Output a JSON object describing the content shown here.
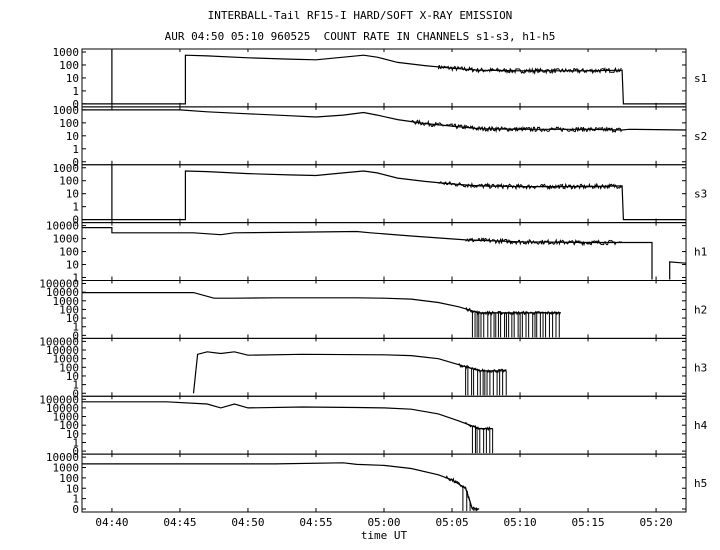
{
  "title_line1": "INTERBALL-Tail RF15-I HARD/SOFT X-RAY EMISSION",
  "title_line2": "AUR 04:50 05:10 960525  COUNT RATE IN CHANNELS s1-s3, h1-h5",
  "chart_data": {
    "type": "line",
    "xlabel": "time UT",
    "x_ticks": [
      "04:40",
      "04:45",
      "04:50",
      "04:55",
      "05:00",
      "05:05",
      "05:10",
      "05:15",
      "05:20"
    ],
    "x_range_minutes_after_0440": [
      -2.2,
      42.2
    ],
    "panels": [
      {
        "name": "s1",
        "y_ticks": [
          "1000",
          "100",
          "10",
          "1",
          "0"
        ],
        "y_max_decade": 3,
        "segments": [
          [
            [
              -2.2,
              -1
            ],
            [
              0,
              -1
            ],
            [
              0,
              4
            ],
            [
              0,
              -1
            ],
            [
              5.4,
              -1
            ],
            [
              5.4,
              2.75
            ],
            [
              7,
              2.7
            ],
            [
              10,
              2.55
            ],
            [
              13,
              2.45
            ],
            [
              15,
              2.4
            ],
            [
              17,
              2.6
            ],
            [
              18.5,
              2.75
            ],
            [
              19.5,
              2.6
            ],
            [
              21,
              2.2
            ],
            [
              23,
              1.95
            ],
            [
              25,
              1.75
            ],
            [
              27,
              1.6
            ],
            [
              30,
              1.55
            ],
            [
              35,
              1.55
            ],
            [
              37.5,
              1.6
            ],
            [
              37.6,
              -1
            ],
            [
              42.2,
              -1
            ]
          ]
        ],
        "noisy": [
          [
            24,
            37.5
          ]
        ]
      },
      {
        "name": "s2",
        "y_ticks": [
          "1000",
          "100",
          "10",
          "1",
          "0"
        ],
        "y_max_decade": 3,
        "segments": [
          [
            [
              -2.2,
              3.0
            ],
            [
              5,
              3.0
            ],
            [
              7,
              2.85
            ],
            [
              10,
              2.7
            ],
            [
              13,
              2.55
            ],
            [
              15,
              2.45
            ],
            [
              17,
              2.6
            ],
            [
              18.5,
              2.8
            ],
            [
              19.5,
              2.6
            ],
            [
              21,
              2.25
            ],
            [
              23,
              1.95
            ],
            [
              25,
              1.75
            ],
            [
              27,
              1.55
            ],
            [
              30,
              1.5
            ],
            [
              35,
              1.5
            ],
            [
              37.5,
              1.45
            ],
            [
              38,
              1.5
            ],
            [
              42.2,
              1.45
            ]
          ]
        ],
        "noisy": [
          [
            22,
            37.5
          ]
        ]
      },
      {
        "name": "s3",
        "y_ticks": [
          "1000",
          "100",
          "10",
          "1",
          "0"
        ],
        "y_max_decade": 3,
        "segments": [
          [
            [
              -2.2,
              -1
            ],
            [
              0,
              -1
            ],
            [
              0,
              4
            ],
            [
              0,
              -1
            ],
            [
              5.4,
              -1
            ],
            [
              5.4,
              2.75
            ],
            [
              7,
              2.7
            ],
            [
              10,
              2.55
            ],
            [
              13,
              2.45
            ],
            [
              15,
              2.4
            ],
            [
              17,
              2.6
            ],
            [
              18.5,
              2.75
            ],
            [
              19.5,
              2.6
            ],
            [
              21,
              2.2
            ],
            [
              23,
              1.95
            ],
            [
              25,
              1.75
            ],
            [
              27,
              1.6
            ],
            [
              30,
              1.55
            ],
            [
              35,
              1.55
            ],
            [
              37.5,
              1.6
            ],
            [
              37.6,
              -1
            ],
            [
              42.2,
              -1
            ]
          ]
        ],
        "noisy": [
          [
            24,
            37.5
          ]
        ]
      },
      {
        "name": "h1",
        "y_ticks": [
          "10000",
          "1000",
          "100",
          "10",
          "1"
        ],
        "y_max_decade": 4,
        "segments": [
          [
            [
              -2.2,
              3.85
            ],
            [
              0,
              3.85
            ],
            [
              0,
              3.45
            ],
            [
              6,
              3.45
            ],
            [
              8,
              3.3
            ],
            [
              9,
              3.45
            ],
            [
              14,
              3.5
            ],
            [
              18,
              3.55
            ],
            [
              19,
              3.45
            ],
            [
              22,
              3.2
            ],
            [
              26,
              2.9
            ],
            [
              30,
              2.75
            ],
            [
              35,
              2.7
            ],
            [
              39.7,
              2.7
            ],
            [
              39.7,
              -0.2
            ]
          ],
          [
            [
              41,
              -0.2
            ],
            [
              41,
              1.2
            ],
            [
              42.2,
              1.1
            ]
          ]
        ],
        "noisy": [
          [
            26,
            37.5
          ]
        ]
      },
      {
        "name": "h2",
        "y_ticks": [
          "100000",
          "10000",
          "1000",
          "100",
          "10",
          "1",
          "0"
        ],
        "y_max_decade": 5,
        "segments": [
          [
            [
              -2.2,
              3.95
            ],
            [
              6,
              3.95
            ],
            [
              7.5,
              3.3
            ],
            [
              9,
              3.3
            ],
            [
              12,
              3.35
            ],
            [
              18,
              3.35
            ],
            [
              20,
              3.3
            ],
            [
              22,
              3.2
            ],
            [
              24,
              2.8
            ],
            [
              25.5,
              2.3
            ],
            [
              27,
              1.6
            ],
            [
              30,
              1.6
            ],
            [
              33,
              1.6
            ]
          ]
        ],
        "noisy": [
          [
            26,
            33
          ]
        ],
        "dropouts": [
          [
            26.5,
            33
          ]
        ]
      },
      {
        "name": "h3",
        "y_ticks": [
          "100000",
          "10000",
          "1000",
          "100",
          "10",
          "1",
          "0"
        ],
        "y_max_decade": 5,
        "segments": [
          [
            [
              6,
              -1
            ],
            [
              6.3,
              3.5
            ],
            [
              7,
              3.8
            ],
            [
              8,
              3.6
            ],
            [
              9,
              3.8
            ],
            [
              10,
              3.4
            ],
            [
              14,
              3.5
            ],
            [
              20,
              3.45
            ],
            [
              22,
              3.35
            ],
            [
              24,
              3.0
            ],
            [
              25.5,
              2.3
            ],
            [
              27,
              1.6
            ],
            [
              29,
              1.6
            ]
          ]
        ],
        "noisy": [
          [
            25.5,
            29
          ]
        ],
        "dropouts": [
          [
            26,
            29
          ]
        ]
      },
      {
        "name": "h4",
        "y_ticks": [
          "100000",
          "10000",
          "1000",
          "100",
          "10",
          "1",
          "0"
        ],
        "y_max_decade": 5,
        "segments": [
          [
            [
              -2.2,
              4.7
            ],
            [
              4,
              4.7
            ],
            [
              7,
              4.45
            ],
            [
              8,
              4.0
            ],
            [
              9,
              4.45
            ],
            [
              10,
              4.0
            ],
            [
              14,
              4.1
            ],
            [
              18,
              4.05
            ],
            [
              20,
              4.0
            ],
            [
              22,
              3.85
            ],
            [
              24,
              3.3
            ],
            [
              25.5,
              2.5
            ],
            [
              27,
              1.6
            ],
            [
              28,
              1.6
            ]
          ]
        ],
        "noisy": [
          [
            26,
            28
          ]
        ],
        "dropouts": [
          [
            26.5,
            28
          ]
        ]
      },
      {
        "name": "h5",
        "y_ticks": [
          "10000",
          "1000",
          "100",
          "10",
          "1",
          "0"
        ],
        "y_max_decade": 4,
        "segments": [
          [
            [
              -2.2,
              3.35
            ],
            [
              6,
              3.35
            ],
            [
              12,
              3.35
            ],
            [
              17,
              3.45
            ],
            [
              18,
              3.3
            ],
            [
              20,
              3.2
            ],
            [
              22,
              2.9
            ],
            [
              24,
              2.3
            ],
            [
              25,
              1.8
            ],
            [
              26,
              1.0
            ],
            [
              26.5,
              -1
            ],
            [
              27,
              -1
            ]
          ]
        ],
        "noisy": [
          [
            24.5,
            27
          ]
        ],
        "dropouts": [
          [
            25.8,
            27
          ]
        ]
      }
    ]
  }
}
